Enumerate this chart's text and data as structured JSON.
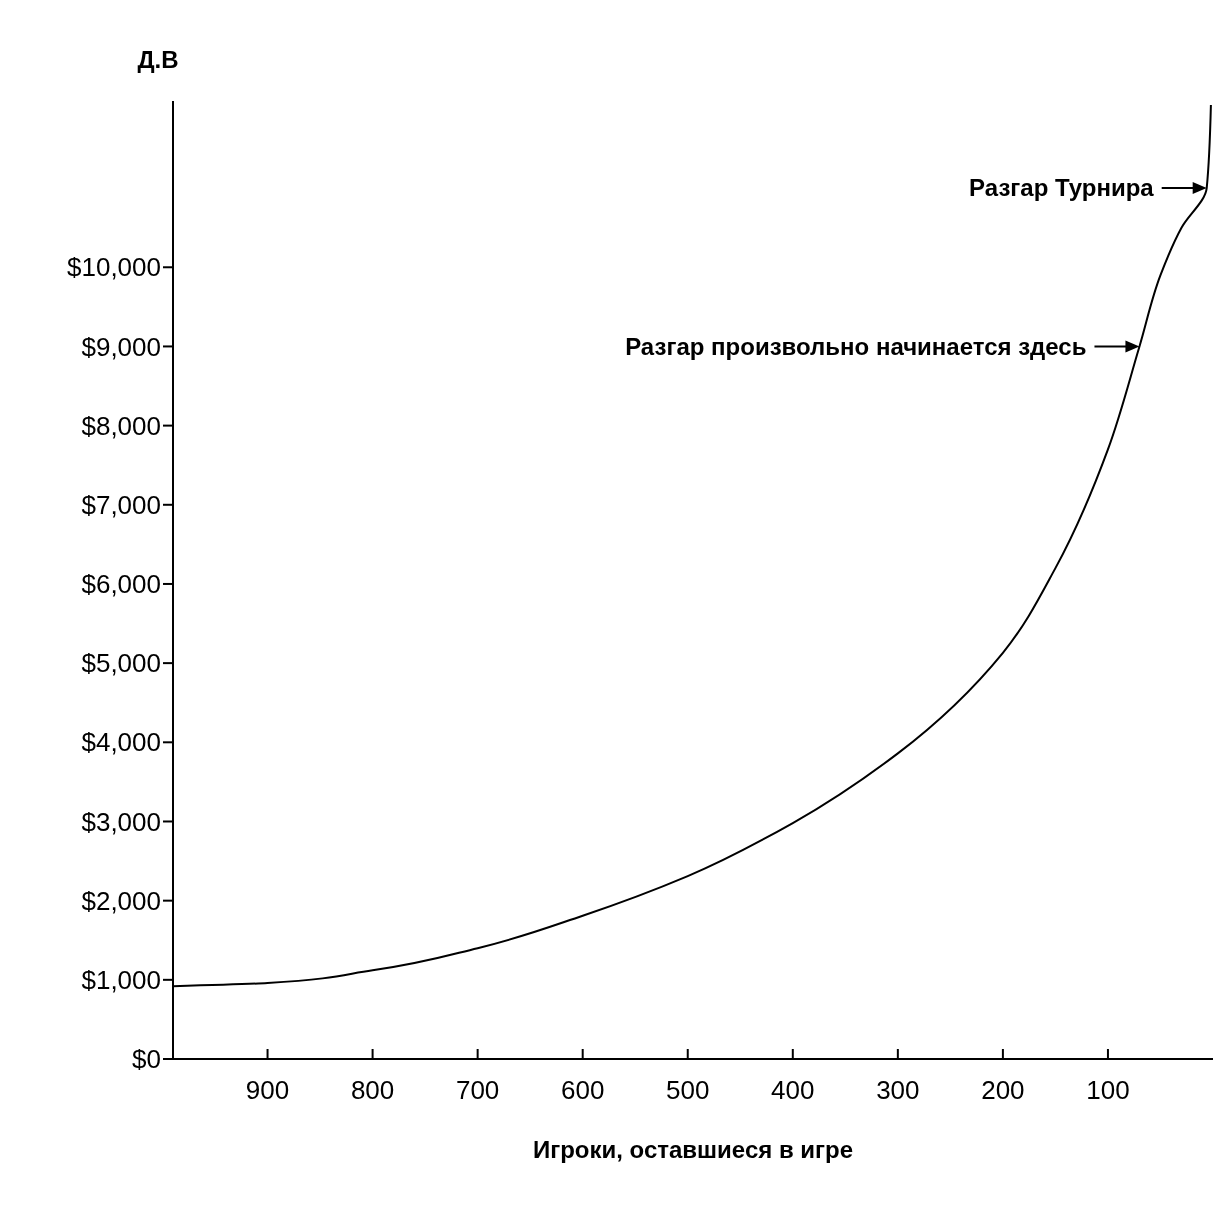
{
  "chart_data": {
    "type": "line",
    "ylabel": "Д.В",
    "xlabel": "Игроки, оставшиеся в игре",
    "x": [
      990,
      900,
      800,
      700,
      600,
      500,
      400,
      300,
      200,
      150,
      100,
      70,
      50,
      30,
      6,
      2
    ],
    "series": [
      {
        "color": "#000000",
        "values": [
          920,
          960,
          1120,
          1400,
          1810,
          2310,
          2980,
          3860,
          5130,
          6200,
          7700,
          9000,
          9900,
          10500,
          11000,
          12050
        ]
      }
    ],
    "xlim": [
      990,
      0
    ],
    "xticks": [
      900,
      800,
      700,
      600,
      500,
      400,
      300,
      200,
      100
    ],
    "ylim": [
      0,
      12100
    ],
    "yticks": [
      {
        "value": 0,
        "label": "$0"
      },
      {
        "value": 1000,
        "label": "$1,000"
      },
      {
        "value": 2000,
        "label": "$2,000"
      },
      {
        "value": 3000,
        "label": "$3,000"
      },
      {
        "value": 4000,
        "label": "$4,000"
      },
      {
        "value": 5000,
        "label": "$5,000"
      },
      {
        "value": 6000,
        "label": "$6,000"
      },
      {
        "value": 7000,
        "label": "$7,000"
      },
      {
        "value": 8000,
        "label": "$8,000"
      },
      {
        "value": 9000,
        "label": "$9,000"
      },
      {
        "value": 10000,
        "label": "$10,000"
      }
    ],
    "annotations": [
      {
        "text": "Разгар Турнира",
        "x": 6,
        "y": 11000
      },
      {
        "text": "Разгар произвольно начинается здесь",
        "x": 70,
        "y": 9000
      }
    ],
    "grid": false,
    "marker": "none",
    "line_style": "solid"
  }
}
